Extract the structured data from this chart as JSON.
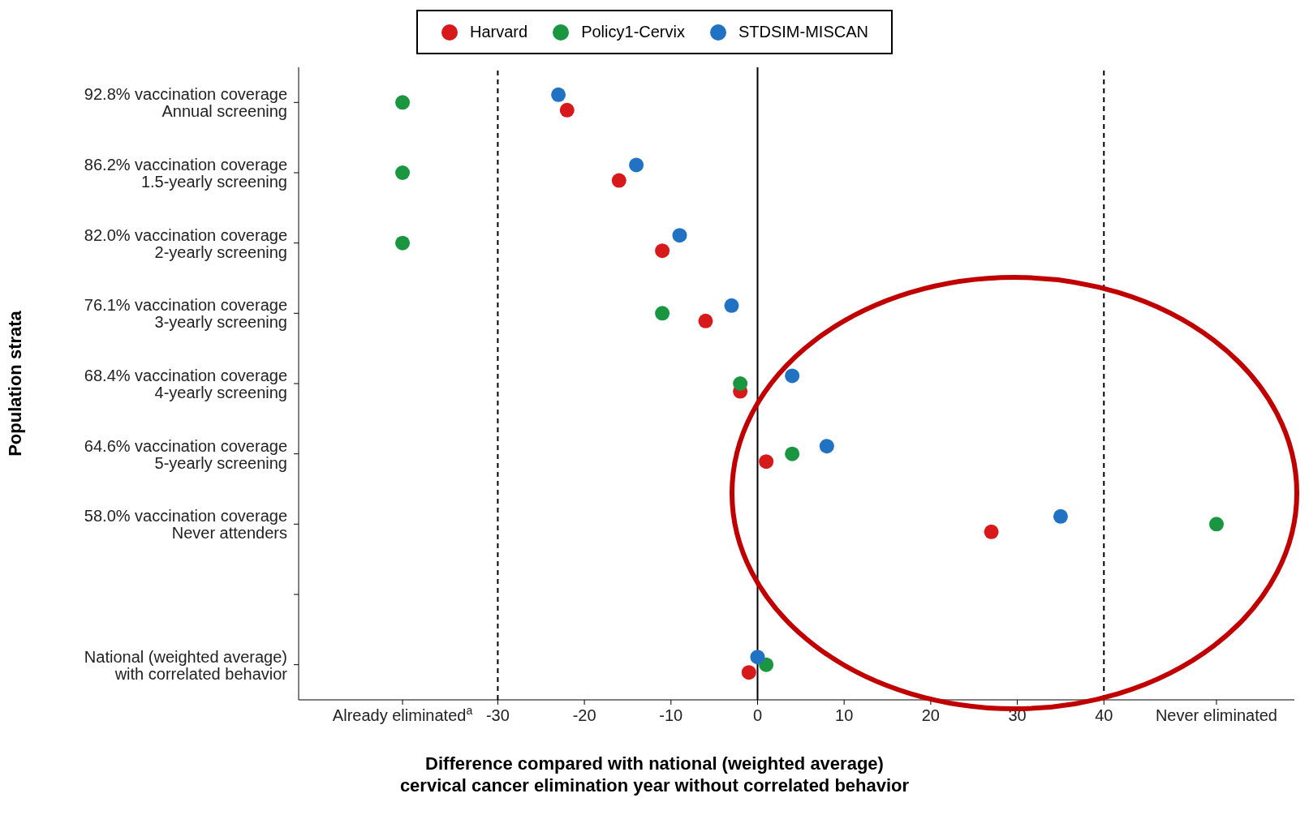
{
  "chart_data": {
    "type": "scatter",
    "orientation": "horizontal",
    "xlabel": "Difference compared with national (weighted average)\ncervical cancer elimination year without correlated behavior",
    "ylabel": "Population strata",
    "categories": [
      "92.8% vaccination coverage\nAnnual screening",
      "86.2% vaccination coverage\n1.5-yearly screening",
      "82.0% vaccination coverage\n2-yearly screening",
      "76.1% vaccination coverage\n3-yearly screening",
      "68.4% vaccination coverage\n4-yearly screening",
      "64.6% vaccination coverage\n5-yearly screening",
      "58.0% vaccination coverage\nNever attenders",
      null,
      "National (weighted average)\nwith correlated behavior"
    ],
    "series": [
      {
        "name": "Harvard",
        "color": "#d7191c",
        "values": [
          -22,
          -16,
          -11,
          -6,
          -2,
          1,
          27,
          null,
          -1
        ]
      },
      {
        "name": "Policy1-Cervix",
        "color": "#1a9641",
        "values": [
          -41,
          -41,
          -41,
          -11,
          -2,
          4,
          53,
          null,
          1
        ]
      },
      {
        "name": "STDSIM-MISCAN",
        "color": "#2272c3",
        "values": [
          -23,
          -14,
          -9,
          -3,
          4,
          8,
          35,
          null,
          0
        ]
      }
    ],
    "xlim": [
      -53,
      62
    ],
    "xticks": [
      {
        "value": -41,
        "label": "Already eliminated$^{a}$"
      },
      -30,
      -20,
      -10,
      0,
      10,
      20,
      30,
      40,
      {
        "value": 53,
        "label": "Never eliminated"
      }
    ],
    "ref_lines": [
      {
        "axis": "x",
        "value": -30,
        "line_style": "dashed",
        "color": "#000000"
      },
      {
        "axis": "x",
        "value": 0,
        "line_style": "solid",
        "color": "#000000"
      },
      {
        "axis": "x",
        "value": 40,
        "line_style": "dashed",
        "color": "#000000"
      }
    ],
    "legend": "top",
    "marker": "circle"
  }
}
